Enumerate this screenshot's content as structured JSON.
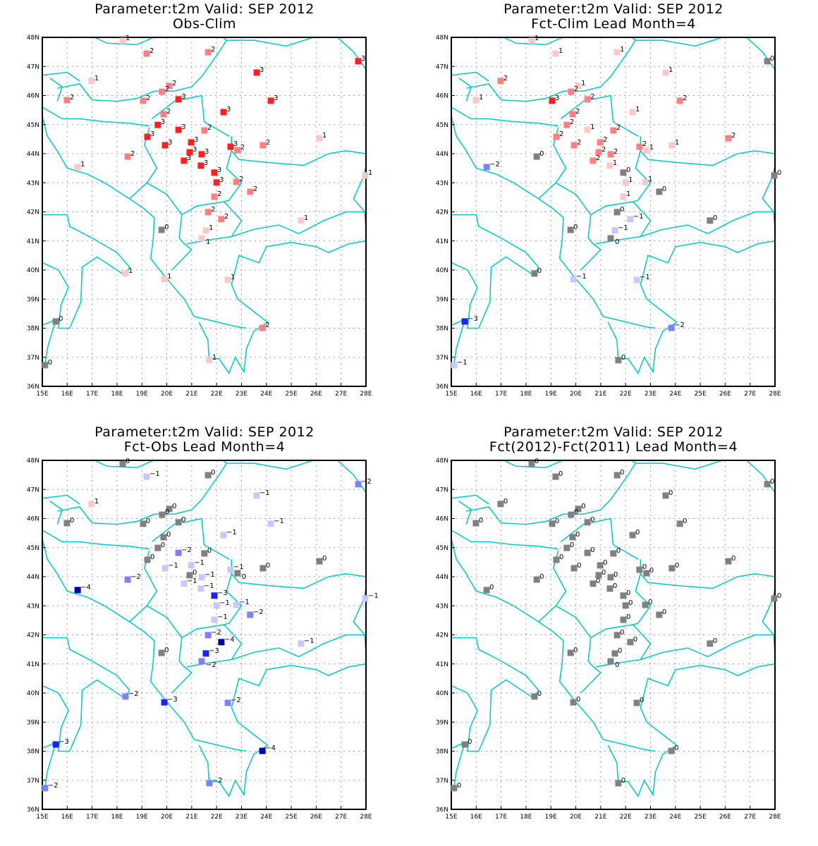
{
  "chart_data": [
    {
      "type": "scatter",
      "title": "Parameter:t2m Valid: SEP 2012",
      "subtitle": "Obs-Clim",
      "values_key": "obs_clim"
    },
    {
      "type": "scatter",
      "title": "Parameter:t2m Valid: SEP 2012",
      "subtitle": "Fct-Clim Lead Month=4",
      "values_key": "fct_clim"
    },
    {
      "type": "scatter",
      "title": "Parameter:t2m Valid: SEP 2012",
      "subtitle": "Fct-Obs Lead Month=4",
      "values_key": "fct_obs"
    },
    {
      "type": "scatter",
      "title": "Parameter:t2m Valid: SEP 2012",
      "subtitle": "Fct(2012)-Fct(2011) Lead Month=4",
      "values_key": "fct_fct"
    }
  ],
  "axes": {
    "xlim": [
      15,
      28
    ],
    "ylim": [
      36,
      48
    ],
    "grid": true,
    "xticks": [
      "15E",
      "16E",
      "17E",
      "18E",
      "19E",
      "20E",
      "21E",
      "22E",
      "23E",
      "24E",
      "25E",
      "26E",
      "27E",
      "28E"
    ],
    "yticks": [
      "36N",
      "37N",
      "38N",
      "39N",
      "40N",
      "41N",
      "42N",
      "43N",
      "44N",
      "45N",
      "46N",
      "47N",
      "48N"
    ]
  },
  "stations": {
    "lon": [
      18.23,
      19.19,
      21.66,
      27.69,
      16.98,
      15.99,
      23.61,
      20.1,
      19.81,
      19.05,
      20.47,
      24.18,
      19.87,
      22.28,
      19.64,
      20.47,
      21.51,
      19.22,
      19.93,
      20.98,
      20.92,
      21.4,
      22.56,
      22.84,
      20.69,
      21.37,
      18.43,
      16.42,
      23.86,
      26.13,
      21.91,
      22.0,
      22.79,
      23.35,
      21.91,
      21.66,
      22.19,
      27.97,
      25.39,
      19.79,
      21.57,
      21.4,
      18.34,
      19.9,
      22.45,
      15.54,
      23.84,
      21.71,
      15.11
    ],
    "lat": [
      47.88,
      47.44,
      47.49,
      47.18,
      46.5,
      45.84,
      46.79,
      46.33,
      46.13,
      45.82,
      45.87,
      45.82,
      45.36,
      45.43,
      44.99,
      44.82,
      44.8,
      44.58,
      44.29,
      44.39,
      44.05,
      43.98,
      44.24,
      44.12,
      43.76,
      43.59,
      43.9,
      43.54,
      44.29,
      44.53,
      43.35,
      43.01,
      43.03,
      42.69,
      42.52,
      41.99,
      41.75,
      43.25,
      41.7,
      41.38,
      41.36,
      41.09,
      39.88,
      39.68,
      39.66,
      38.23,
      38.01,
      36.9,
      36.73
    ]
  },
  "values": {
    "obs_clim": [
      1,
      2,
      2,
      3,
      1,
      2,
      3,
      2,
      2,
      2,
      3,
      3,
      2,
      3,
      3,
      3,
      2,
      3,
      3,
      3,
      3,
      3,
      3,
      2,
      3,
      3,
      2,
      1,
      2,
      1,
      3,
      3,
      2,
      2,
      2,
      2,
      2,
      1,
      1,
      0,
      1,
      1,
      1,
      1,
      1,
      0,
      2,
      1,
      0
    ],
    "fct_clim": [
      1,
      1,
      1,
      0,
      2,
      1,
      1,
      1,
      2,
      3,
      2,
      2,
      2,
      1,
      2,
      1,
      2,
      2,
      2,
      2,
      2,
      2,
      2,
      1,
      2,
      1,
      0,
      -2,
      1,
      2,
      0,
      1,
      1,
      0,
      1,
      0,
      -1,
      0,
      0,
      0,
      -1,
      0,
      0,
      -1,
      -1,
      -3,
      -2,
      0,
      -1
    ],
    "fct_obs": [
      0,
      -1,
      0,
      -2,
      1,
      0,
      -1,
      0,
      0,
      0,
      0,
      -1,
      0,
      -1,
      0,
      -2,
      0,
      0,
      -1,
      -1,
      0,
      -1,
      -1,
      0,
      -1,
      -1,
      -2,
      -4,
      0,
      0,
      -3,
      -1,
      -1,
      -2,
      -1,
      -2,
      -4,
      -1,
      -1,
      0,
      -3,
      -2,
      -2,
      -3,
      -2,
      -3,
      -4,
      -2,
      -2
    ],
    "fct_fct": [
      0,
      0,
      0,
      0,
      0,
      0,
      0,
      0,
      0,
      0,
      0,
      0,
      0,
      0,
      0,
      0,
      0,
      0,
      0,
      0,
      0,
      0,
      0,
      0,
      0,
      0,
      0,
      0,
      0,
      0,
      0,
      0,
      0,
      0,
      0,
      0,
      0,
      0,
      0,
      0,
      0,
      0,
      0,
      0,
      0,
      0,
      0,
      0,
      0
    ]
  },
  "colors": {
    "3": "#ff2020",
    "2": "#ff8080",
    "1": "#ffc8c8",
    "0": "#808080",
    "-1": "#c8c8ff",
    "-2": "#8080ff",
    "-3": "#2020ff",
    "-4": "#0000a0",
    "coast": "#00c8c8",
    "grid": "#a0a0a0"
  }
}
